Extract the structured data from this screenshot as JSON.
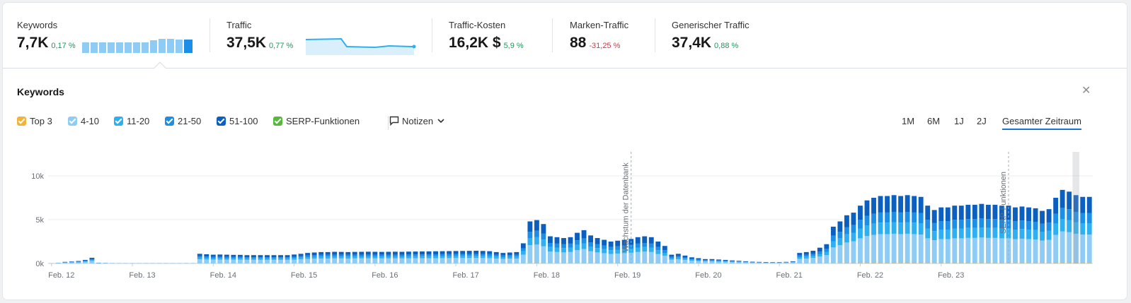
{
  "metrics": [
    {
      "label": "Keywords",
      "value": "7,7K",
      "change": "0,17 %",
      "change_dir": "pos"
    },
    {
      "label": "Traffic",
      "value": "37,5K",
      "change": "0,77 %",
      "change_dir": "pos"
    },
    {
      "label": "Traffic-Kosten",
      "value": "16,2K $",
      "change": "5,9 %",
      "change_dir": "pos"
    },
    {
      "label": "Marken-Traffic",
      "value": "88",
      "change": "-31,25 %",
      "change_dir": "neg"
    },
    {
      "label": "Generischer Traffic",
      "value": "37,4K",
      "change": "0,88 %",
      "change_dir": "pos"
    }
  ],
  "panel": {
    "title": "Keywords",
    "close_icon": "close-icon"
  },
  "legend": [
    {
      "label": "Top 3",
      "color": "#f5b335"
    },
    {
      "label": "4-10",
      "color": "#8fccf5"
    },
    {
      "label": "11-20",
      "color": "#2db0f2"
    },
    {
      "label": "21-50",
      "color": "#1b8ee8"
    },
    {
      "label": "51-100",
      "color": "#0b5fc0"
    },
    {
      "label": "SERP-Funktionen",
      "color": "#55b83a"
    }
  ],
  "notes_label": "Notizen",
  "periods": [
    {
      "label": "1M",
      "active": false
    },
    {
      "label": "6M",
      "active": false
    },
    {
      "label": "1J",
      "active": false
    },
    {
      "label": "2J",
      "active": false
    },
    {
      "label": "Gesamter Zeitraum",
      "active": true
    }
  ],
  "chart_data": {
    "type": "bar",
    "stacked": true,
    "ylim": [
      0,
      10000
    ],
    "yticks": [
      {
        "value": 0,
        "label": "0k"
      },
      {
        "value": 5000,
        "label": "5k"
      },
      {
        "value": 10000,
        "label": "10k"
      }
    ],
    "xticks": [
      {
        "index": 0,
        "label": "Feb. 12"
      },
      {
        "index": 12,
        "label": "Feb. 13"
      },
      {
        "index": 24,
        "label": "Feb. 14"
      },
      {
        "index": 36,
        "label": "Feb. 15"
      },
      {
        "index": 48,
        "label": "Feb. 16"
      },
      {
        "index": 60,
        "label": "Feb. 17"
      },
      {
        "index": 72,
        "label": "Feb. 18"
      },
      {
        "index": 84,
        "label": "Feb. 19"
      },
      {
        "index": 96,
        "label": "Feb. 20"
      },
      {
        "index": 108,
        "label": "Feb. 21"
      },
      {
        "index": 120,
        "label": "Feb. 22"
      },
      {
        "index": 132,
        "label": "Feb. 23"
      }
    ],
    "totals": [
      20,
      60,
      180,
      220,
      280,
      400,
      650,
      80,
      60,
      40,
      30,
      30,
      30,
      30,
      30,
      30,
      30,
      30,
      30,
      30,
      30,
      30,
      1100,
      1050,
      1000,
      1020,
      1000,
      980,
      980,
      950,
      950,
      950,
      950,
      950,
      950,
      950,
      1020,
      1100,
      1200,
      1250,
      1300,
      1300,
      1330,
      1320,
      1300,
      1320,
      1330,
      1340,
      1330,
      1320,
      1330,
      1340,
      1330,
      1350,
      1360,
      1370,
      1380,
      1390,
      1400,
      1410,
      1420,
      1430,
      1440,
      1450,
      1430,
      1400,
      1300,
      1200,
      1250,
      1300,
      2300,
      4800,
      4950,
      4500,
      3100,
      3000,
      2900,
      3000,
      3500,
      3800,
      3200,
      2900,
      2700,
      2500,
      2600,
      2700,
      2800,
      3000,
      3100,
      3000,
      2500,
      2000,
      1000,
      1100,
      900,
      700,
      600,
      500,
      500,
      450,
      400,
      350,
      300,
      250,
      200,
      180,
      160,
      150,
      150,
      180,
      250,
      1200,
      1300,
      1450,
      1800,
      2200,
      4200,
      4800,
      5500,
      5800,
      6600,
      7200,
      7500,
      7700,
      7700,
      7800,
      7700,
      7800,
      7700,
      7600,
      6600,
      6100,
      6400,
      6400,
      6600,
      6600,
      6700,
      6700,
      6800,
      6700,
      6700,
      6600,
      6600,
      6400,
      6500,
      6400,
      6300,
      6000,
      6200,
      7500,
      8400,
      8200,
      7800,
      7600,
      7600
    ],
    "segment_shares": {
      "Top 3": 0.005,
      "4-10": 0.43,
      "11-20": 0.17,
      "21-50": 0.15,
      "51-100": 0.245
    },
    "annotations": [
      {
        "label": "Wachstum der Datenbank",
        "index": 86
      },
      {
        "label": "SERP-Funktionen",
        "index": 142
      }
    ]
  }
}
